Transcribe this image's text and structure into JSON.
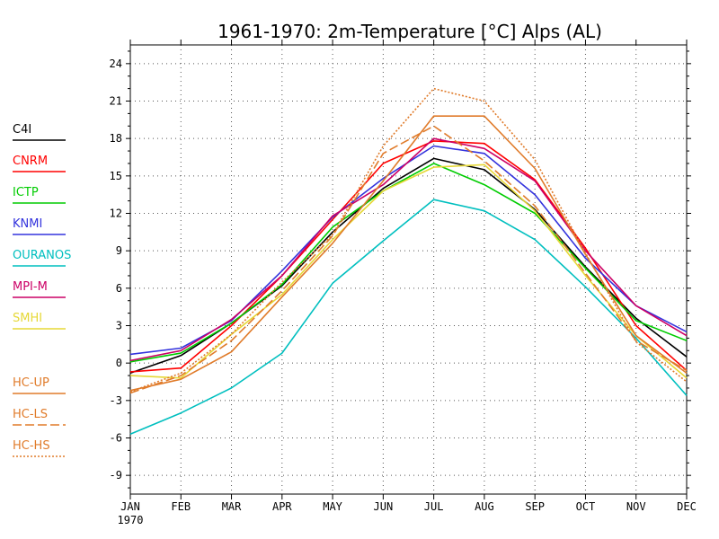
{
  "chart_data": {
    "type": "line",
    "title": "1961-1970: 2m-Temperature [°C] Alps (AL)",
    "xlabel": "",
    "ylabel": "",
    "categories": [
      "JAN",
      "FEB",
      "MAR",
      "APR",
      "MAY",
      "JUN",
      "JUL",
      "AUG",
      "SEP",
      "OCT",
      "NOV",
      "DEC"
    ],
    "x_sublabel": "1970",
    "ylim": [
      -10.5,
      25.5
    ],
    "yticks": [
      -9,
      -6,
      -3,
      0,
      3,
      6,
      9,
      12,
      15,
      18,
      21,
      24
    ],
    "grid": true,
    "legend_position": "left",
    "series": [
      {
        "name": "C4I",
        "color": "#000000",
        "dash": "solid",
        "values": [
          -0.8,
          0.6,
          3.2,
          6.2,
          10.5,
          14.0,
          16.4,
          15.5,
          12.3,
          7.7,
          3.6,
          0.5
        ]
      },
      {
        "name": "CNRM",
        "color": "#ff0000",
        "dash": "solid",
        "values": [
          -0.7,
          -0.4,
          3.0,
          7.0,
          11.5,
          16.0,
          17.8,
          17.6,
          14.7,
          9.2,
          3.0,
          -0.6
        ]
      },
      {
        "name": "ICTP",
        "color": "#00cc00",
        "dash": "solid",
        "values": [
          0.1,
          0.8,
          3.2,
          6.3,
          10.9,
          13.8,
          16.0,
          14.3,
          12.0,
          7.6,
          3.4,
          1.8
        ]
      },
      {
        "name": "KNMI",
        "color": "#3333dd",
        "dash": "solid",
        "values": [
          0.7,
          1.2,
          3.4,
          7.4,
          11.7,
          14.8,
          17.4,
          16.8,
          13.5,
          8.4,
          4.6,
          2.5
        ]
      },
      {
        "name": "OURANOS",
        "color": "#00bfbf",
        "dash": "solid",
        "values": [
          -5.7,
          -4.0,
          -2.0,
          0.8,
          6.4,
          9.8,
          13.1,
          12.2,
          9.9,
          6.1,
          2.0,
          -2.6
        ]
      },
      {
        "name": "MPI-M",
        "color": "#cc0066",
        "dash": "solid",
        "values": [
          0.2,
          1.0,
          3.5,
          7.0,
          11.8,
          14.3,
          18.0,
          17.2,
          14.6,
          9.0,
          4.6,
          2.2
        ]
      },
      {
        "name": "SMHI",
        "color": "#e6d836",
        "dash": "solid",
        "values": [
          -1.0,
          -1.2,
          2.3,
          5.5,
          9.9,
          13.8,
          15.7,
          15.9,
          12.2,
          7.0,
          2.2,
          -1.2
        ]
      },
      {
        "name": "HC-UP",
        "color": "#e07b2a",
        "dash": "solid",
        "values": [
          -2.2,
          -1.3,
          0.9,
          5.3,
          9.6,
          14.6,
          19.8,
          19.8,
          15.6,
          8.7,
          2.2,
          -0.8
        ]
      },
      {
        "name": "HC-LS",
        "color": "#e07b2a",
        "dash": "longdash",
        "values": [
          -2.4,
          -1.0,
          1.8,
          5.8,
          10.2,
          16.8,
          19.0,
          16.2,
          12.6,
          7.2,
          1.8,
          -0.6
        ]
      },
      {
        "name": "HC-HS",
        "color": "#e07b2a",
        "dash": "dotted",
        "values": [
          -2.3,
          -0.8,
          2.3,
          6.5,
          10.3,
          17.4,
          22.0,
          21.0,
          16.3,
          8.8,
          1.7,
          -1.5
        ]
      }
    ]
  }
}
